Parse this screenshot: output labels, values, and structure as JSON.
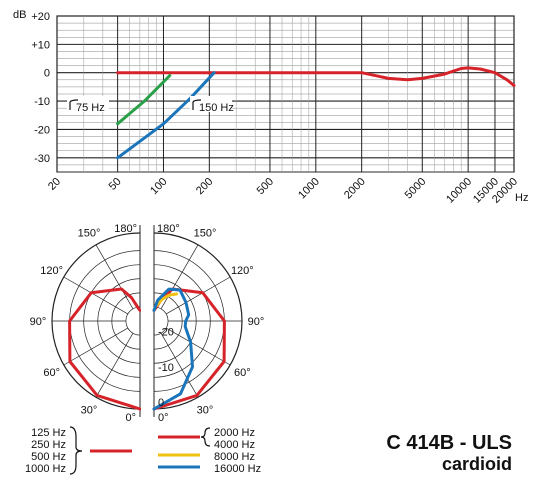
{
  "product": {
    "model": "C 414B - ULS",
    "pattern": "cardioid"
  },
  "chart_data": [
    {
      "type": "line",
      "title": "",
      "ylabel": "dB",
      "xlabel": "Hz",
      "x_scale": "log",
      "xlim": [
        20,
        20000
      ],
      "ylim": [
        -35,
        20
      ],
      "y_ticks": [
        "+20",
        "+10",
        "0",
        "-10",
        "-20",
        "-30"
      ],
      "x_ticks": [
        "20",
        "50",
        "100",
        "200",
        "500",
        "1000",
        "2000",
        "5000",
        "10000",
        "15000",
        "20000"
      ],
      "annotations": [
        "75 Hz",
        "150 Hz"
      ],
      "series": [
        {
          "color": "#d6232a",
          "x": [
            50,
            100,
            200,
            500,
            1000,
            2000,
            3000,
            4000,
            5000,
            7000,
            9000,
            10000,
            12000,
            15000,
            18000,
            20000
          ],
          "y": [
            0,
            0,
            0,
            0,
            0,
            0,
            -2,
            -2.5,
            -2,
            -0.5,
            1.5,
            1.7,
            1.3,
            0,
            -2.5,
            -4.5
          ]
        },
        {
          "color": "#2aa049",
          "x": [
            50,
            75,
            110
          ],
          "y": [
            -18,
            -10,
            -1
          ]
        },
        {
          "color": "#1b75bb",
          "x": [
            50,
            100,
            150,
            215
          ],
          "y": [
            -30,
            -18,
            -9,
            0
          ]
        }
      ],
      "grid": true
    },
    {
      "type": "polar",
      "title": "",
      "angle_labels": [
        "0°",
        "30°",
        "60°",
        "90°",
        "120°",
        "150°",
        "180°"
      ],
      "radial_labels": [
        "0",
        "-10",
        "-20"
      ],
      "rlim": [
        -25,
        0
      ],
      "legend_left": [
        "125 Hz",
        "250 Hz",
        "500 Hz",
        "1000 Hz"
      ],
      "legend_right": [
        {
          "label": "2000 Hz",
          "color": "#d6232a"
        },
        {
          "label": "4000 Hz",
          "color": "#d6232a"
        },
        {
          "label": "8000 Hz",
          "color": "#f2c213"
        },
        {
          "label": "16000 Hz",
          "color": "#1b75bb"
        }
      ],
      "left_half": [
        {
          "color": "#d6232a",
          "angles": [
            0,
            30,
            60,
            90,
            120,
            150,
            160,
            170,
            180
          ],
          "values": [
            0,
            -0.6,
            -2,
            -5,
            -9,
            -14.5,
            -18,
            -21,
            -22
          ]
        }
      ],
      "right_half": [
        {
          "color": "#d6232a",
          "angles": [
            0,
            30,
            60,
            90,
            120,
            150,
            160,
            170,
            180
          ],
          "values": [
            0,
            -0.6,
            -2,
            -5,
            -9,
            -14.5,
            -18,
            -21,
            -22
          ]
        },
        {
          "color": "#f2c213",
          "angles": [
            140,
            150,
            160,
            170
          ],
          "values": [
            -15,
            -16.5,
            -18.5,
            -20.5
          ]
        },
        {
          "color": "#1b75bb",
          "angles": [
            0,
            20,
            40,
            60,
            80,
            90,
            100,
            120,
            140,
            155,
            170,
            180
          ],
          "values": [
            0,
            -3,
            -8,
            -13,
            -16,
            -16,
            -15,
            -14.5,
            -13.5,
            -15,
            -19,
            -22
          ]
        }
      ]
    }
  ]
}
